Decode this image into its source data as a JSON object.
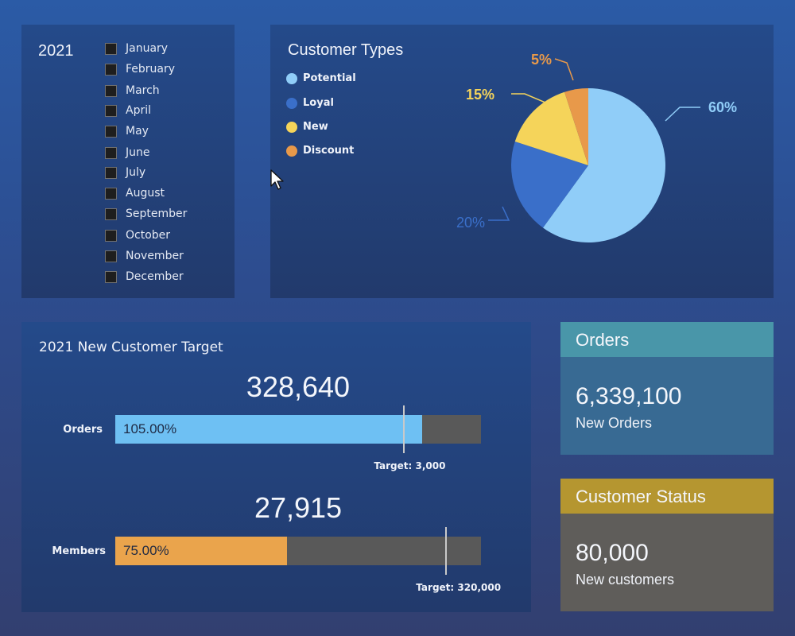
{
  "months_panel": {
    "year": "2021",
    "months": [
      "January",
      "February",
      "March",
      "April",
      "May",
      "June",
      "July",
      "August",
      "September",
      "October",
      "November",
      "December"
    ]
  },
  "customer_types": {
    "title": "Customer Types",
    "legend": [
      {
        "label": "Potential",
        "color": "#90cdf8"
      },
      {
        "label": "Loyal",
        "color": "#3a6fc9"
      },
      {
        "label": "New",
        "color": "#f5d45a"
      },
      {
        "label": "Discount",
        "color": "#e8994a"
      }
    ],
    "chart_data": {
      "type": "pie",
      "slices": [
        {
          "label": "Potential",
          "value": 60,
          "display": "60%",
          "color": "#90cdf8"
        },
        {
          "label": "Loyal",
          "value": 20,
          "display": "20%",
          "color": "#3a6fc9"
        },
        {
          "label": "New",
          "value": 15,
          "display": "15%",
          "color": "#f5d45a"
        },
        {
          "label": "Discount",
          "value": 5,
          "display": "5%",
          "color": "#e8994a"
        }
      ]
    }
  },
  "target_panel": {
    "title": "2021 New Customer Target",
    "bars": [
      {
        "name": "Orders",
        "big_value": "328,640",
        "percent_label": "105.00%",
        "fill_fraction": 0.84,
        "target_fraction": 0.79,
        "target_label": "Target: 3,000",
        "color": "#6ec0f3"
      },
      {
        "name": "Members",
        "big_value": "27,915",
        "percent_label": "75.00%",
        "fill_fraction": 0.47,
        "target_fraction": 0.905,
        "target_label": "Target: 320,000",
        "color": "#eaa44c"
      }
    ]
  },
  "orders_card": {
    "title": "Orders",
    "value": "6,339,100",
    "subtitle": "New Orders",
    "header_color": "#4996a9",
    "body_color": "#386a93"
  },
  "status_card": {
    "title": "Customer Status",
    "value": "80,000",
    "subtitle": "New customers",
    "header_color": "#b59630",
    "body_color": "#5f5d5a"
  }
}
